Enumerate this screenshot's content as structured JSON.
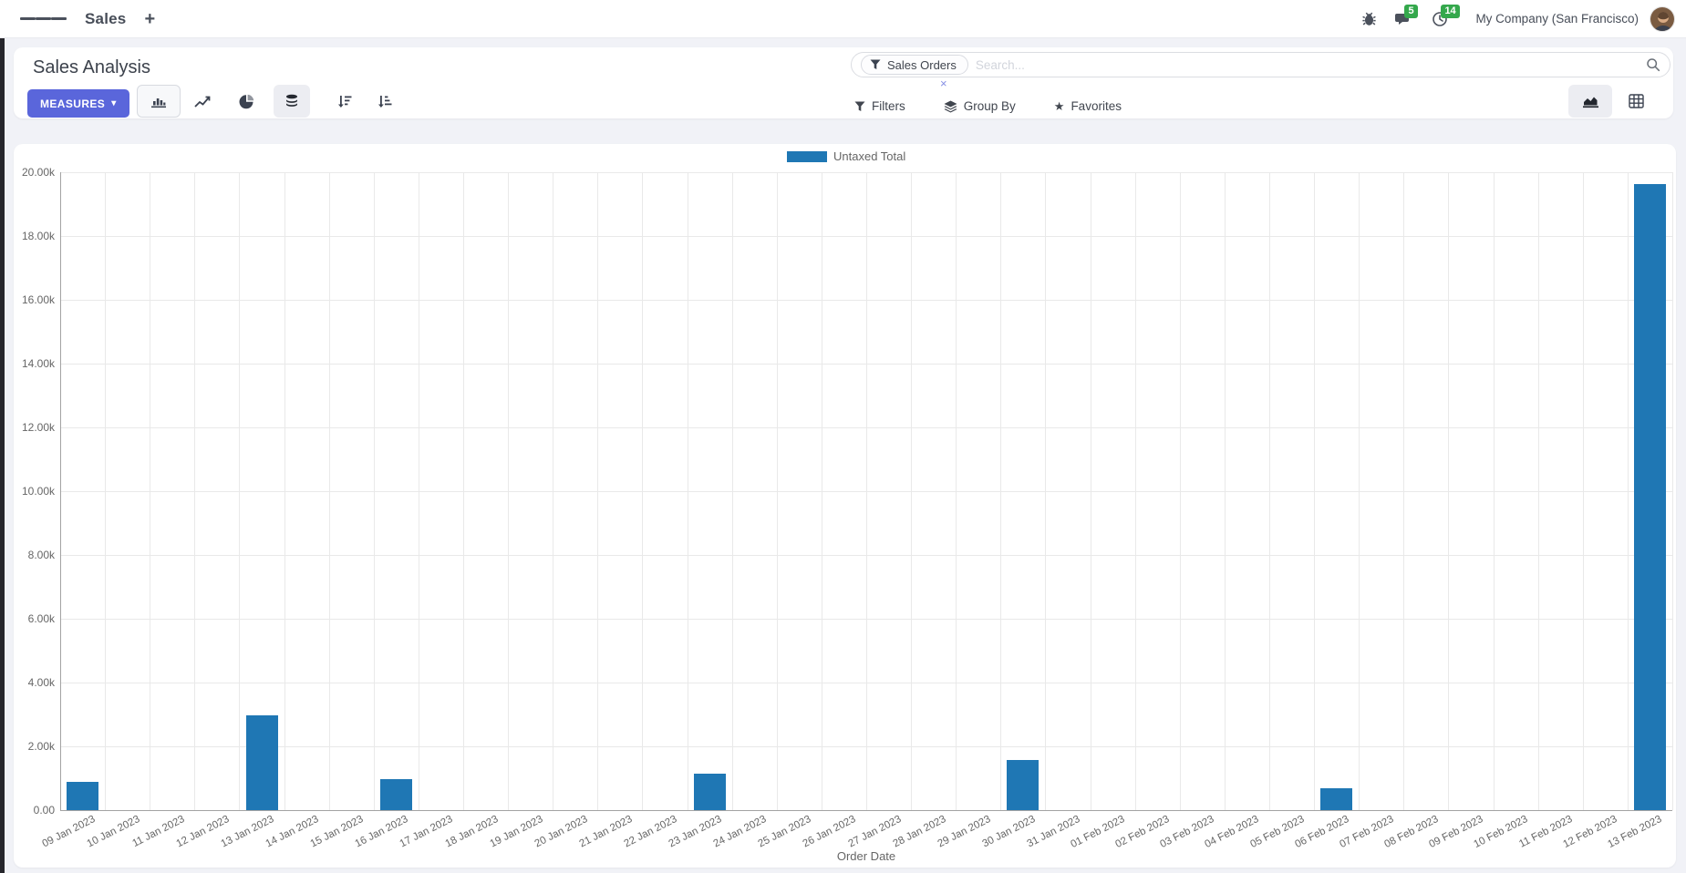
{
  "navbar": {
    "app_name": "Sales",
    "new_tab_glyph": "+",
    "messages_badge": "5",
    "activities_badge": "14",
    "company": "My Company (San Francisco)"
  },
  "control_panel": {
    "title": "Sales Analysis",
    "measures": {
      "label": "MEASURES",
      "caret": "▾"
    },
    "search": {
      "facet_label": "Sales Orders",
      "placeholder": "Search...",
      "remove_glyph": "×"
    },
    "filter_buttons": {
      "filters": "Filters",
      "group_by": "Group By",
      "favorites": "Favorites"
    }
  },
  "colors": {
    "primary": "#5a66db",
    "badge_green": "#34a84c",
    "bar_blue": "#1f77b4"
  },
  "chart_data": {
    "type": "bar",
    "legend_label": "Untaxed Total",
    "legend_position": "top",
    "xlabel": "Order Date",
    "ylabel": "",
    "ylim": [
      0,
      20000
    ],
    "ytick_step": 2000,
    "ytick_labels_top_down": [
      "20.00k",
      "18.00k",
      "16.00k",
      "14.00k",
      "12.00k",
      "10.00k",
      "8.00k",
      "6.00k",
      "4.00k",
      "2.00k",
      "0.00"
    ],
    "grid": true,
    "bar_color": "#1f77b4",
    "categories": [
      "09 Jan 2023",
      "10 Jan 2023",
      "11 Jan 2023",
      "12 Jan 2023",
      "13 Jan 2023",
      "14 Jan 2023",
      "15 Jan 2023",
      "16 Jan 2023",
      "17 Jan 2023",
      "18 Jan 2023",
      "19 Jan 2023",
      "20 Jan 2023",
      "21 Jan 2023",
      "22 Jan 2023",
      "23 Jan 2023",
      "24 Jan 2023",
      "25 Jan 2023",
      "26 Jan 2023",
      "27 Jan 2023",
      "28 Jan 2023",
      "29 Jan 2023",
      "30 Jan 2023",
      "31 Jan 2023",
      "01 Feb 2023",
      "02 Feb 2023",
      "03 Feb 2023",
      "04 Feb 2023",
      "05 Feb 2023",
      "06 Feb 2023",
      "07 Feb 2023",
      "08 Feb 2023",
      "09 Feb 2023",
      "10 Feb 2023",
      "11 Feb 2023",
      "12 Feb 2023",
      "13 Feb 2023"
    ],
    "series": [
      {
        "name": "Untaxed Total",
        "values": [
          890,
          0,
          0,
          0,
          2980,
          0,
          0,
          970,
          0,
          0,
          0,
          0,
          0,
          0,
          1140,
          0,
          0,
          0,
          0,
          0,
          0,
          1560,
          0,
          0,
          0,
          0,
          0,
          0,
          690,
          0,
          0,
          0,
          0,
          0,
          0,
          19630
        ]
      }
    ]
  }
}
